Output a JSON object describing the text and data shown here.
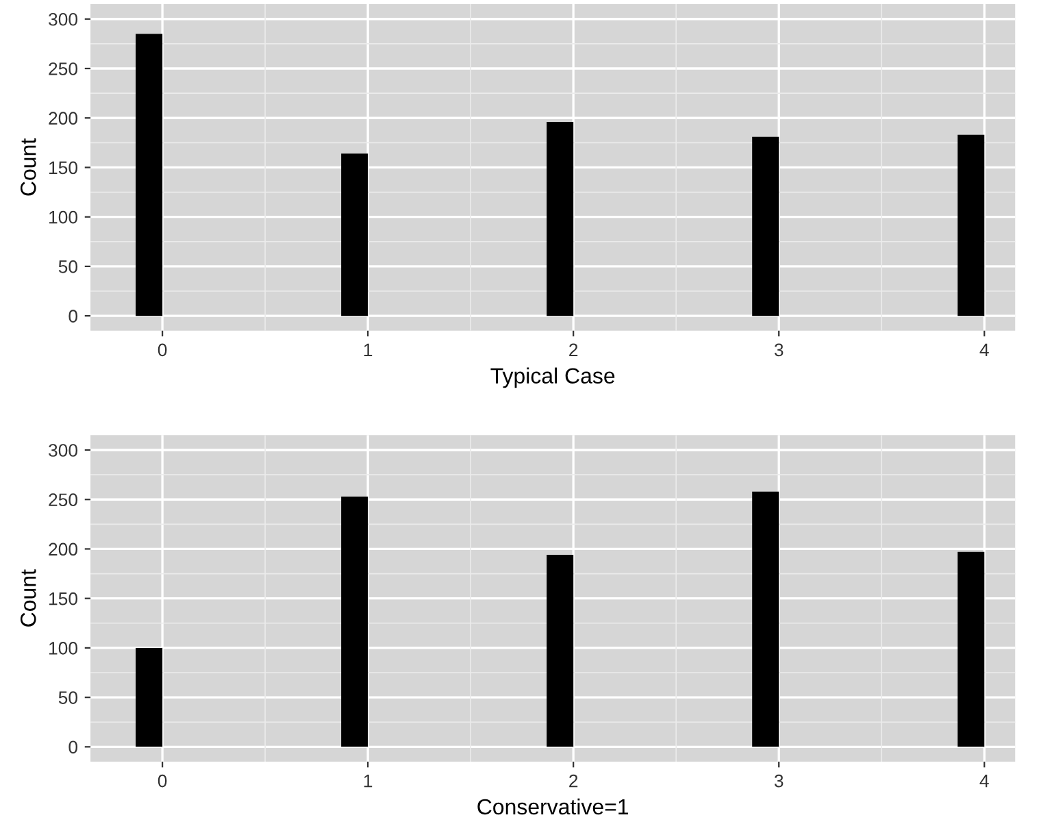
{
  "chart_data": [
    {
      "type": "bar",
      "xlabel": "Typical Case",
      "ylabel": "Count",
      "x": [
        0,
        1,
        2,
        3,
        4
      ],
      "values": [
        285,
        164,
        196,
        181,
        183
      ],
      "color": "#000000",
      "xlim": [
        -0.35,
        4.15
      ],
      "xticks": [
        0,
        1,
        2,
        3,
        4
      ],
      "ylim": [
        -15,
        315
      ],
      "yticks": [
        0,
        50,
        100,
        150,
        200,
        250,
        300
      ],
      "grid": true
    },
    {
      "type": "bar",
      "xlabel": "Conservative=1",
      "ylabel": "Count",
      "x": [
        0,
        1,
        2,
        3,
        4
      ],
      "values": [
        100,
        253,
        194,
        258,
        197
      ],
      "color": "#000000",
      "xlim": [
        -0.35,
        4.15
      ],
      "xticks": [
        0,
        1,
        2,
        3,
        4
      ],
      "ylim": [
        -15,
        315
      ],
      "yticks": [
        0,
        50,
        100,
        150,
        200,
        250,
        300
      ],
      "grid": true
    }
  ]
}
